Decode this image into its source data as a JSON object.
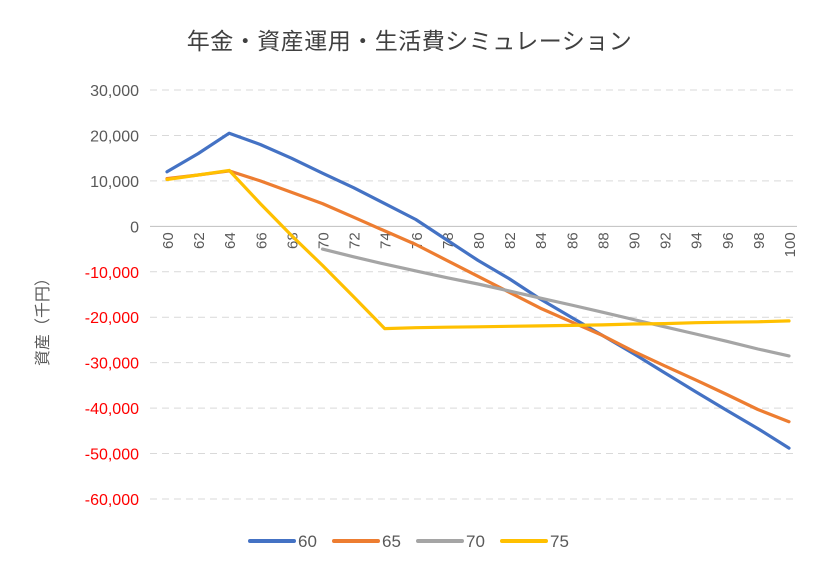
{
  "chart_data": {
    "type": "line",
    "title": "年金・資産運用・生活費シミュレーション",
    "ylabel": "資産（千円）",
    "xlabel": "",
    "ylim": [
      -60000,
      30000
    ],
    "y_ticks": [
      30000,
      20000,
      10000,
      0,
      -10000,
      -20000,
      -30000,
      -40000,
      -50000,
      -60000
    ],
    "y_tick_labels": [
      "30,000",
      "20,000",
      "10,000",
      "0",
      "-10,000",
      "-20,000",
      "-30,000",
      "-40,000",
      "-50,000",
      "-60,000"
    ],
    "x": [
      60,
      62,
      64,
      66,
      68,
      70,
      72,
      74,
      76,
      78,
      80,
      82,
      84,
      86,
      88,
      90,
      92,
      94,
      96,
      98,
      100
    ],
    "x_tick_labels": [
      "60",
      "62",
      "64",
      "66",
      "68",
      "70",
      "72",
      "74",
      "76",
      "78",
      "80",
      "82",
      "84",
      "86",
      "88",
      "90",
      "92",
      "94",
      "96",
      "98",
      "100"
    ],
    "grid": "horizontal dashed",
    "legend_position": "bottom",
    "colors": {
      "positive_tick": "#595959",
      "negative_tick": "#ff0000",
      "grid": "#d9d9d9"
    },
    "series": [
      {
        "name": "60",
        "color": "#4472c4",
        "points": [
          [
            60,
            12000
          ],
          [
            62,
            16000
          ],
          [
            64,
            20500
          ],
          [
            66,
            18000
          ],
          [
            68,
            15000
          ],
          [
            70,
            11700
          ],
          [
            72,
            8500
          ],
          [
            74,
            5000
          ],
          [
            76,
            1500
          ],
          [
            78,
            -3000
          ],
          [
            80,
            -7500
          ],
          [
            82,
            -11500
          ],
          [
            84,
            -16000
          ],
          [
            86,
            -20000
          ],
          [
            88,
            -24000
          ],
          [
            90,
            -28000
          ],
          [
            92,
            -32200
          ],
          [
            94,
            -36400
          ],
          [
            96,
            -40500
          ],
          [
            98,
            -44500
          ],
          [
            100,
            -48800
          ]
        ]
      },
      {
        "name": "65",
        "color": "#ed7d31",
        "points": [
          [
            60,
            10500
          ],
          [
            62,
            11300
          ],
          [
            64,
            12200
          ],
          [
            66,
            10000
          ],
          [
            68,
            7500
          ],
          [
            70,
            5000
          ],
          [
            72,
            2000
          ],
          [
            74,
            -1000
          ],
          [
            76,
            -4000
          ],
          [
            78,
            -7500
          ],
          [
            80,
            -11000
          ],
          [
            82,
            -14500
          ],
          [
            84,
            -18000
          ],
          [
            86,
            -21000
          ],
          [
            88,
            -24000
          ],
          [
            90,
            -27500
          ],
          [
            92,
            -30700
          ],
          [
            94,
            -33800
          ],
          [
            96,
            -37000
          ],
          [
            98,
            -40300
          ],
          [
            100,
            -43000
          ]
        ]
      },
      {
        "name": "70",
        "color": "#a5a5a5",
        "points": [
          [
            70,
            -5000
          ],
          [
            72,
            -6700
          ],
          [
            74,
            -8300
          ],
          [
            76,
            -9800
          ],
          [
            78,
            -11300
          ],
          [
            80,
            -12700
          ],
          [
            82,
            -14200
          ],
          [
            84,
            -15800
          ],
          [
            86,
            -17300
          ],
          [
            88,
            -18900
          ],
          [
            90,
            -20500
          ],
          [
            92,
            -22100
          ],
          [
            94,
            -23700
          ],
          [
            96,
            -25300
          ],
          [
            98,
            -27000
          ],
          [
            100,
            -28500
          ]
        ]
      },
      {
        "name": "75",
        "color": "#ffc000",
        "points": [
          [
            60,
            10300
          ],
          [
            62,
            11300
          ],
          [
            64,
            12300
          ],
          [
            66,
            5000
          ],
          [
            68,
            -2000
          ],
          [
            70,
            -8600
          ],
          [
            72,
            -15500
          ],
          [
            74,
            -22500
          ],
          [
            76,
            -22300
          ],
          [
            78,
            -22200
          ],
          [
            80,
            -22100
          ],
          [
            82,
            -22000
          ],
          [
            84,
            -21900
          ],
          [
            86,
            -21800
          ],
          [
            88,
            -21700
          ],
          [
            90,
            -21500
          ],
          [
            92,
            -21400
          ],
          [
            94,
            -21200
          ],
          [
            96,
            -21100
          ],
          [
            98,
            -21000
          ],
          [
            100,
            -20800
          ]
        ]
      }
    ]
  }
}
